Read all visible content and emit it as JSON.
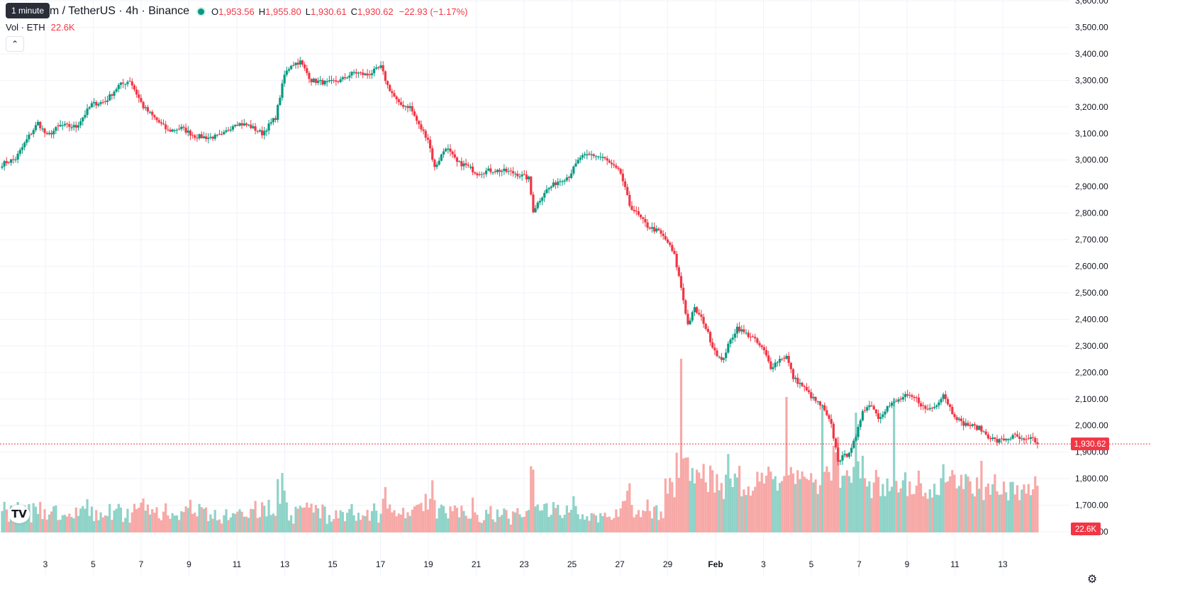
{
  "header": {
    "symbol_title": "Ethereum / TetherUS · 4h · Binance",
    "visible_title": "um / TetherUS · 4h · Binance",
    "open_label": "O",
    "open": "1,953.56",
    "high_label": "H",
    "high": "1,955.80",
    "low_label": "L",
    "low": "1,930.61",
    "close_label": "C",
    "close": "1,930.62",
    "change": "−22.93 (−1.17%)",
    "tooltip": "1 minute"
  },
  "volume_legend": {
    "label": "Vol · ETH",
    "value": "22.6K"
  },
  "collapse_icon": "chevron-up-icon",
  "logo_icon": "tradingview-logo",
  "settings_icon": "gear-icon",
  "colors": {
    "up": "#089981",
    "down": "#f23645",
    "up_volume": "#8fd3c8",
    "down_volume": "#f7a9a7",
    "grid": "#f0f3fa"
  },
  "chart_data": {
    "type": "candlestick",
    "price_axis": {
      "ticks": [
        "3,600.00",
        "3,500.00",
        "3,400.00",
        "3,300.00",
        "3,200.00",
        "3,100.00",
        "3,000.00",
        "2,900.00",
        "2,800.00",
        "2,700.00",
        "2,600.00",
        "2,500.00",
        "2,400.00",
        "2,300.00",
        "2,200.00",
        "2,100.00",
        "2,000.00",
        "1,900.00",
        "1,800.00",
        "1,700.00",
        "1,600.00"
      ],
      "range": [
        1600,
        3600
      ]
    },
    "time_axis": {
      "ticks": [
        "3",
        "5",
        "7",
        "9",
        "11",
        "13",
        "15",
        "17",
        "19",
        "21",
        "23",
        "25",
        "27",
        "29",
        "Feb",
        "3",
        "5",
        "7",
        "9",
        "11",
        "13"
      ]
    },
    "last_price_label": "1,930.62",
    "last_price": 1930.62,
    "last_volume_label": "22.6K",
    "anchors": [
      [
        0,
        2985,
        "u"
      ],
      [
        6,
        3005,
        "u"
      ],
      [
        12,
        3090,
        "u"
      ],
      [
        16,
        3140,
        "u"
      ],
      [
        20,
        3090,
        "d"
      ],
      [
        26,
        3130,
        "u"
      ],
      [
        33,
        3125,
        "d"
      ],
      [
        40,
        3210,
        "u"
      ],
      [
        46,
        3220,
        "u"
      ],
      [
        52,
        3280,
        "u"
      ],
      [
        57,
        3300,
        "u"
      ],
      [
        63,
        3200,
        "d"
      ],
      [
        69,
        3150,
        "d"
      ],
      [
        74,
        3110,
        "d"
      ],
      [
        80,
        3120,
        "u"
      ],
      [
        86,
        3090,
        "d"
      ],
      [
        92,
        3085,
        "d"
      ],
      [
        98,
        3090,
        "u"
      ],
      [
        104,
        3140,
        "u"
      ],
      [
        110,
        3130,
        "d"
      ],
      [
        116,
        3100,
        "d"
      ],
      [
        122,
        3160,
        "u"
      ],
      [
        126,
        3320,
        "u"
      ],
      [
        129,
        3360,
        "u"
      ],
      [
        133,
        3370,
        "u"
      ],
      [
        138,
        3300,
        "d"
      ],
      [
        145,
        3290,
        "d"
      ],
      [
        151,
        3300,
        "u"
      ],
      [
        157,
        3330,
        "u"
      ],
      [
        163,
        3320,
        "d"
      ],
      [
        169,
        3350,
        "u"
      ],
      [
        172,
        3280,
        "d"
      ],
      [
        177,
        3210,
        "d"
      ],
      [
        182,
        3200,
        "d"
      ],
      [
        186,
        3130,
        "d"
      ],
      [
        190,
        3080,
        "d"
      ],
      [
        193,
        2970,
        "d"
      ],
      [
        198,
        3050,
        "u"
      ],
      [
        203,
        2990,
        "d"
      ],
      [
        207,
        2980,
        "d"
      ],
      [
        212,
        2950,
        "d"
      ],
      [
        217,
        2960,
        "u"
      ],
      [
        223,
        2960,
        "u"
      ],
      [
        229,
        2950,
        "d"
      ],
      [
        235,
        2930,
        "d"
      ],
      [
        237,
        2810,
        "d"
      ],
      [
        242,
        2880,
        "u"
      ],
      [
        248,
        2920,
        "u"
      ],
      [
        253,
        2940,
        "u"
      ],
      [
        258,
        3010,
        "u"
      ],
      [
        263,
        3020,
        "u"
      ],
      [
        268,
        3010,
        "d"
      ],
      [
        272,
        2980,
        "d"
      ],
      [
        276,
        2950,
        "d"
      ],
      [
        280,
        2830,
        "d"
      ],
      [
        284,
        2790,
        "d"
      ],
      [
        288,
        2750,
        "d"
      ],
      [
        293,
        2730,
        "d"
      ],
      [
        297,
        2690,
        "d"
      ],
      [
        300,
        2640,
        "d"
      ],
      [
        303,
        2520,
        "d"
      ],
      [
        306,
        2380,
        "d"
      ],
      [
        309,
        2440,
        "u"
      ],
      [
        313,
        2390,
        "d"
      ],
      [
        317,
        2300,
        "d"
      ],
      [
        321,
        2240,
        "d"
      ],
      [
        325,
        2320,
        "u"
      ],
      [
        328,
        2370,
        "u"
      ],
      [
        331,
        2350,
        "d"
      ],
      [
        335,
        2330,
        "d"
      ],
      [
        340,
        2280,
        "d"
      ],
      [
        343,
        2220,
        "d"
      ],
      [
        347,
        2250,
        "u"
      ],
      [
        350,
        2260,
        "u"
      ],
      [
        353,
        2180,
        "d"
      ],
      [
        357,
        2150,
        "d"
      ],
      [
        362,
        2100,
        "d"
      ],
      [
        366,
        2070,
        "d"
      ],
      [
        370,
        2000,
        "d"
      ],
      [
        373,
        1870,
        "d"
      ],
      [
        377,
        1890,
        "u"
      ],
      [
        381,
        1950,
        "u"
      ],
      [
        384,
        2060,
        "u"
      ],
      [
        388,
        2080,
        "u"
      ],
      [
        391,
        2030,
        "d"
      ],
      [
        395,
        2070,
        "u"
      ],
      [
        399,
        2090,
        "u"
      ],
      [
        403,
        2110,
        "u"
      ],
      [
        408,
        2100,
        "d"
      ],
      [
        412,
        2060,
        "d"
      ],
      [
        416,
        2070,
        "u"
      ],
      [
        420,
        2120,
        "u"
      ],
      [
        424,
        2050,
        "d"
      ],
      [
        428,
        2010,
        "d"
      ],
      [
        432,
        2000,
        "d"
      ],
      [
        436,
        1990,
        "d"
      ],
      [
        440,
        1960,
        "d"
      ],
      [
        444,
        1940,
        "d"
      ],
      [
        448,
        1950,
        "u"
      ],
      [
        452,
        1960,
        "u"
      ],
      [
        456,
        1940,
        "d"
      ],
      [
        460,
        1950,
        "u"
      ],
      [
        462,
        1930.62,
        "d"
      ]
    ],
    "volume_spikes": [
      {
        "index": 303,
        "volume_ratio": 1.0,
        "dir": "d"
      },
      {
        "index": 350,
        "volume_ratio": 0.78,
        "dir": "d"
      },
      {
        "index": 366,
        "volume_ratio": 0.73,
        "dir": "u"
      },
      {
        "index": 373,
        "volume_ratio": 0.55,
        "dir": "d"
      },
      {
        "index": 381,
        "volume_ratio": 0.69,
        "dir": "u"
      },
      {
        "index": 398,
        "volume_ratio": 0.77,
        "dir": "u"
      }
    ]
  }
}
